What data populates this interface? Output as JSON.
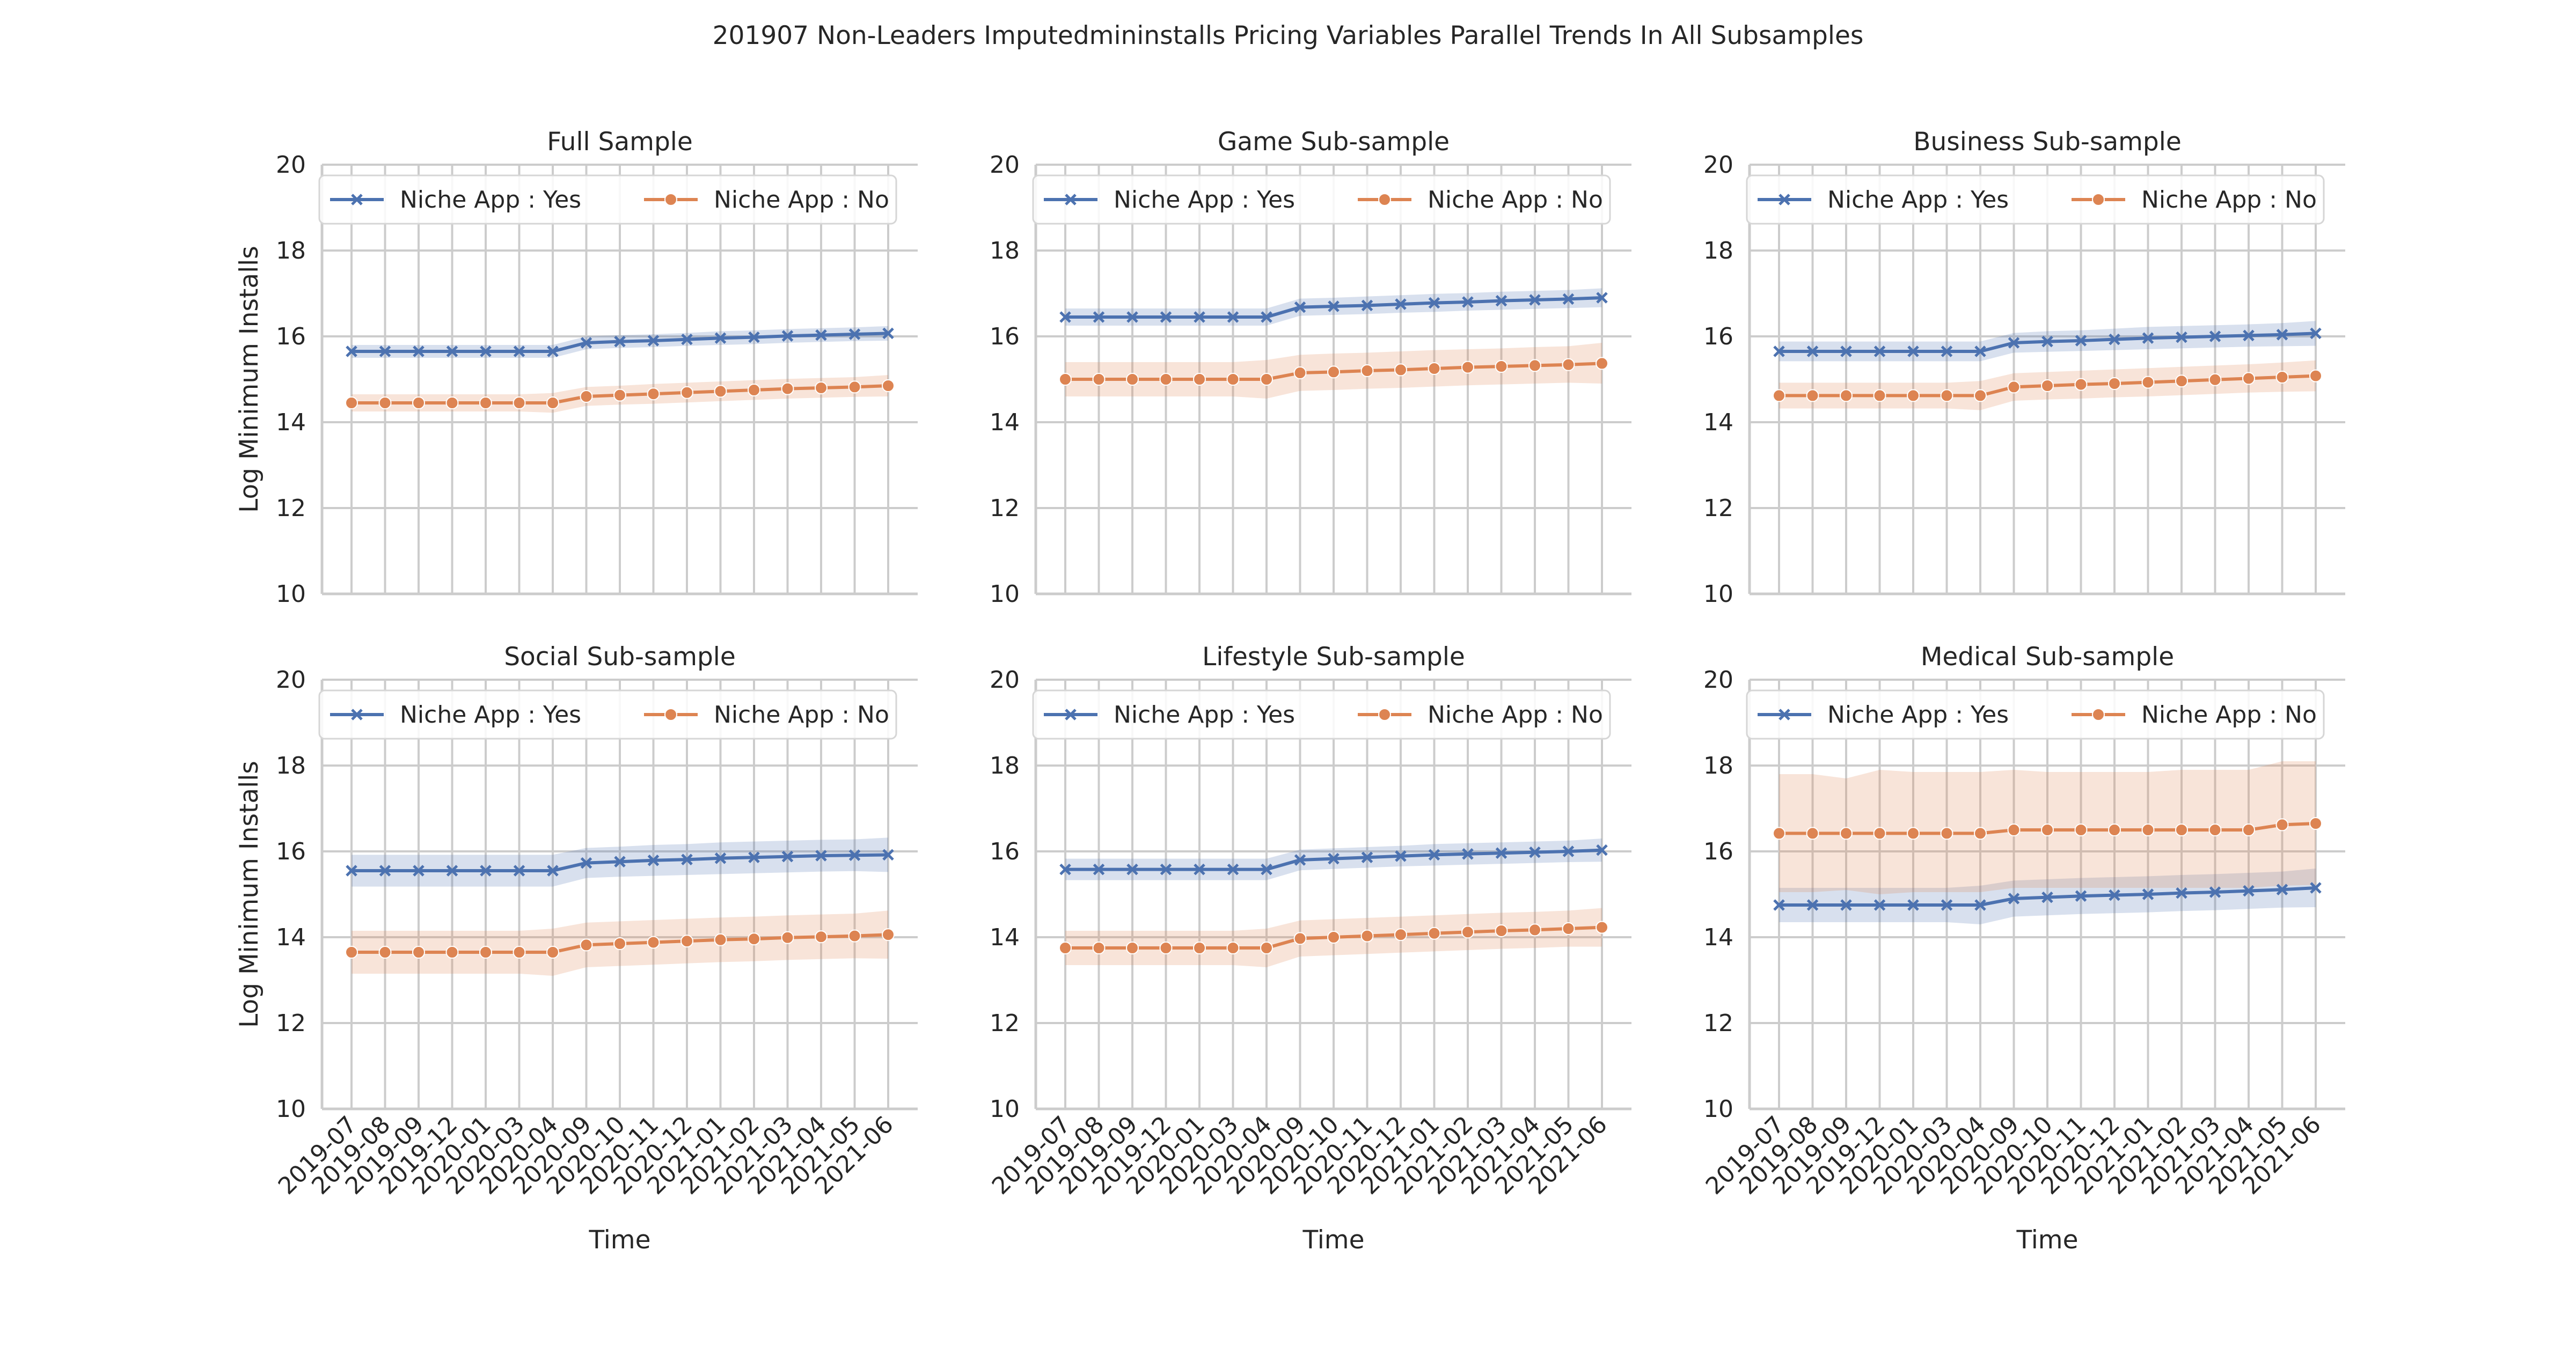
{
  "suptitle": "201907 Non-Leaders Imputedmininstalls Pricing Variables Parallel Trends In All Subsamples",
  "colors": {
    "yes": "#4c72b0",
    "no": "#dd8452",
    "grid": "#cccccc",
    "text": "#262626"
  },
  "chart_data": [
    {
      "type": "line",
      "title": "Full Sample",
      "xlabel": "Time",
      "ylabel": "Log Minimum Installs",
      "ylim": [
        10,
        20
      ],
      "yticks": [
        10,
        12,
        14,
        16,
        18,
        20
      ],
      "categories": [
        "2019-07",
        "2019-08",
        "2019-09",
        "2019-12",
        "2020-01",
        "2020-03",
        "2020-04",
        "2020-09",
        "2020-10",
        "2020-11",
        "2020-12",
        "2021-01",
        "2021-02",
        "2021-03",
        "2021-04",
        "2021-05",
        "2021-06"
      ],
      "grid": true,
      "legend_position": "upper-left",
      "series": [
        {
          "name": "Niche App : Yes",
          "marker": "x",
          "values": [
            15.65,
            15.65,
            15.65,
            15.65,
            15.65,
            15.65,
            15.65,
            15.85,
            15.88,
            15.9,
            15.93,
            15.96,
            15.98,
            16.01,
            16.03,
            16.05,
            16.07
          ],
          "ci_low": [
            15.5,
            15.5,
            15.5,
            15.5,
            15.5,
            15.5,
            15.5,
            15.7,
            15.73,
            15.75,
            15.78,
            15.8,
            15.82,
            15.85,
            15.87,
            15.89,
            15.9
          ],
          "ci_high": [
            15.8,
            15.8,
            15.8,
            15.8,
            15.8,
            15.8,
            15.8,
            16.0,
            16.03,
            16.05,
            16.08,
            16.12,
            16.14,
            16.17,
            16.19,
            16.21,
            16.24
          ]
        },
        {
          "name": "Niche App : No",
          "marker": "o",
          "values": [
            14.45,
            14.45,
            14.45,
            14.45,
            14.45,
            14.45,
            14.45,
            14.6,
            14.63,
            14.66,
            14.69,
            14.72,
            14.75,
            14.78,
            14.8,
            14.82,
            14.85
          ],
          "ci_low": [
            14.25,
            14.25,
            14.25,
            14.25,
            14.25,
            14.25,
            14.22,
            14.38,
            14.41,
            14.43,
            14.46,
            14.49,
            14.52,
            14.55,
            14.57,
            14.59,
            14.6
          ],
          "ci_high": [
            14.65,
            14.65,
            14.65,
            14.65,
            14.65,
            14.65,
            14.68,
            14.82,
            14.85,
            14.89,
            14.92,
            14.95,
            14.98,
            15.01,
            15.03,
            15.05,
            15.1
          ]
        }
      ]
    },
    {
      "type": "line",
      "title": "Game Sub-sample",
      "xlabel": "Time",
      "ylabel": "",
      "ylim": [
        10,
        20
      ],
      "yticks": [
        10,
        12,
        14,
        16,
        18,
        20
      ],
      "categories": [
        "2019-07",
        "2019-08",
        "2019-09",
        "2019-12",
        "2020-01",
        "2020-03",
        "2020-04",
        "2020-09",
        "2020-10",
        "2020-11",
        "2020-12",
        "2021-01",
        "2021-02",
        "2021-03",
        "2021-04",
        "2021-05",
        "2021-06"
      ],
      "grid": true,
      "legend_position": "upper-left",
      "series": [
        {
          "name": "Niche App : Yes",
          "marker": "x",
          "values": [
            16.45,
            16.45,
            16.45,
            16.45,
            16.45,
            16.45,
            16.45,
            16.68,
            16.7,
            16.72,
            16.75,
            16.78,
            16.8,
            16.83,
            16.85,
            16.87,
            16.9
          ],
          "ci_low": [
            16.25,
            16.25,
            16.25,
            16.25,
            16.25,
            16.25,
            16.25,
            16.48,
            16.5,
            16.52,
            16.55,
            16.57,
            16.6,
            16.62,
            16.64,
            16.66,
            16.68
          ],
          "ci_high": [
            16.65,
            16.65,
            16.65,
            16.65,
            16.65,
            16.65,
            16.65,
            16.88,
            16.9,
            16.93,
            16.96,
            16.99,
            17.01,
            17.04,
            17.06,
            17.08,
            17.12
          ]
        },
        {
          "name": "Niche App : No",
          "marker": "o",
          "values": [
            15.0,
            15.0,
            15.0,
            15.0,
            15.0,
            15.0,
            15.0,
            15.15,
            15.17,
            15.2,
            15.22,
            15.25,
            15.28,
            15.3,
            15.32,
            15.34,
            15.37
          ],
          "ci_low": [
            14.6,
            14.6,
            14.6,
            14.6,
            14.6,
            14.6,
            14.55,
            14.73,
            14.75,
            14.78,
            14.8,
            14.83,
            14.86,
            14.88,
            14.9,
            14.92,
            14.9
          ],
          "ci_high": [
            15.4,
            15.4,
            15.4,
            15.4,
            15.4,
            15.4,
            15.45,
            15.57,
            15.6,
            15.62,
            15.65,
            15.68,
            15.7,
            15.72,
            15.75,
            15.77,
            15.85
          ]
        }
      ]
    },
    {
      "type": "line",
      "title": "Business Sub-sample",
      "xlabel": "Time",
      "ylabel": "",
      "ylim": [
        10,
        20
      ],
      "yticks": [
        10,
        12,
        14,
        16,
        18,
        20
      ],
      "categories": [
        "2019-07",
        "2019-08",
        "2019-09",
        "2019-12",
        "2020-01",
        "2020-03",
        "2020-04",
        "2020-09",
        "2020-10",
        "2020-11",
        "2020-12",
        "2021-01",
        "2021-02",
        "2021-03",
        "2021-04",
        "2021-05",
        "2021-06"
      ],
      "grid": true,
      "legend_position": "upper-left",
      "series": [
        {
          "name": "Niche App : Yes",
          "marker": "x",
          "values": [
            15.65,
            15.65,
            15.65,
            15.65,
            15.65,
            15.65,
            15.65,
            15.85,
            15.88,
            15.9,
            15.93,
            15.96,
            15.98,
            16.0,
            16.02,
            16.04,
            16.07
          ],
          "ci_low": [
            15.42,
            15.42,
            15.42,
            15.42,
            15.42,
            15.42,
            15.42,
            15.62,
            15.64,
            15.66,
            15.68,
            15.7,
            15.72,
            15.74,
            15.76,
            15.77,
            15.78
          ],
          "ci_high": [
            15.88,
            15.88,
            15.88,
            15.88,
            15.88,
            15.88,
            15.88,
            16.08,
            16.12,
            16.14,
            16.18,
            16.22,
            16.24,
            16.26,
            16.28,
            16.31,
            16.36
          ]
        },
        {
          "name": "Niche App : No",
          "marker": "o",
          "values": [
            14.62,
            14.62,
            14.62,
            14.62,
            14.62,
            14.62,
            14.62,
            14.82,
            14.85,
            14.88,
            14.9,
            14.93,
            14.96,
            14.99,
            15.02,
            15.05,
            15.08
          ],
          "ci_low": [
            14.32,
            14.32,
            14.32,
            14.32,
            14.32,
            14.32,
            14.28,
            14.5,
            14.53,
            14.55,
            14.58,
            14.6,
            14.63,
            14.66,
            14.69,
            14.71,
            14.72
          ],
          "ci_high": [
            14.92,
            14.92,
            14.92,
            14.92,
            14.92,
            14.92,
            14.96,
            15.14,
            15.17,
            15.2,
            15.23,
            15.26,
            15.29,
            15.32,
            15.35,
            15.39,
            15.44
          ]
        }
      ]
    },
    {
      "type": "line",
      "title": "Social Sub-sample",
      "xlabel": "Time",
      "ylabel": "Log Minimum Installs",
      "ylim": [
        10,
        20
      ],
      "yticks": [
        10,
        12,
        14,
        16,
        18,
        20
      ],
      "categories": [
        "2019-07",
        "2019-08",
        "2019-09",
        "2019-12",
        "2020-01",
        "2020-03",
        "2020-04",
        "2020-09",
        "2020-10",
        "2020-11",
        "2020-12",
        "2021-01",
        "2021-02",
        "2021-03",
        "2021-04",
        "2021-05",
        "2021-06"
      ],
      "grid": true,
      "legend_position": "upper-left",
      "series": [
        {
          "name": "Niche App : Yes",
          "marker": "x",
          "values": [
            15.55,
            15.55,
            15.55,
            15.55,
            15.55,
            15.55,
            15.55,
            15.73,
            15.76,
            15.79,
            15.81,
            15.84,
            15.86,
            15.88,
            15.9,
            15.91,
            15.92
          ],
          "ci_low": [
            15.18,
            15.18,
            15.18,
            15.18,
            15.18,
            15.18,
            15.18,
            15.38,
            15.41,
            15.43,
            15.45,
            15.47,
            15.49,
            15.51,
            15.53,
            15.54,
            15.52
          ],
          "ci_high": [
            15.92,
            15.92,
            15.92,
            15.92,
            15.92,
            15.92,
            15.92,
            16.08,
            16.11,
            16.15,
            16.17,
            16.21,
            16.23,
            16.25,
            16.27,
            16.28,
            16.32
          ]
        },
        {
          "name": "Niche App : No",
          "marker": "o",
          "values": [
            13.65,
            13.65,
            13.65,
            13.65,
            13.65,
            13.65,
            13.65,
            13.82,
            13.85,
            13.88,
            13.91,
            13.94,
            13.96,
            13.99,
            14.01,
            14.03,
            14.06
          ],
          "ci_low": [
            13.15,
            13.15,
            13.15,
            13.15,
            13.15,
            13.15,
            13.1,
            13.3,
            13.33,
            13.36,
            13.39,
            13.42,
            13.44,
            13.47,
            13.49,
            13.51,
            13.5
          ],
          "ci_high": [
            14.15,
            14.15,
            14.15,
            14.15,
            14.15,
            14.15,
            14.2,
            14.34,
            14.37,
            14.4,
            14.43,
            14.46,
            14.48,
            14.51,
            14.53,
            14.55,
            14.62
          ]
        }
      ]
    },
    {
      "type": "line",
      "title": "Lifestyle Sub-sample",
      "xlabel": "Time",
      "ylabel": "",
      "ylim": [
        10,
        20
      ],
      "yticks": [
        10,
        12,
        14,
        16,
        18,
        20
      ],
      "categories": [
        "2019-07",
        "2019-08",
        "2019-09",
        "2019-12",
        "2020-01",
        "2020-03",
        "2020-04",
        "2020-09",
        "2020-10",
        "2020-11",
        "2020-12",
        "2021-01",
        "2021-02",
        "2021-03",
        "2021-04",
        "2021-05",
        "2021-06"
      ],
      "grid": true,
      "legend_position": "upper-left",
      "series": [
        {
          "name": "Niche App : Yes",
          "marker": "x",
          "values": [
            15.58,
            15.58,
            15.58,
            15.58,
            15.58,
            15.58,
            15.58,
            15.8,
            15.83,
            15.86,
            15.89,
            15.92,
            15.94,
            15.96,
            15.98,
            16.0,
            16.03
          ],
          "ci_low": [
            15.33,
            15.33,
            15.33,
            15.33,
            15.33,
            15.33,
            15.33,
            15.56,
            15.59,
            15.62,
            15.65,
            15.67,
            15.69,
            15.71,
            15.73,
            15.75,
            15.76
          ],
          "ci_high": [
            15.83,
            15.83,
            15.83,
            15.83,
            15.83,
            15.83,
            15.83,
            16.04,
            16.07,
            16.1,
            16.13,
            16.17,
            16.19,
            16.21,
            16.23,
            16.25,
            16.3
          ]
        },
        {
          "name": "Niche App : No",
          "marker": "o",
          "values": [
            13.75,
            13.75,
            13.75,
            13.75,
            13.75,
            13.75,
            13.75,
            13.97,
            14.0,
            14.03,
            14.06,
            14.09,
            14.12,
            14.15,
            14.17,
            14.2,
            14.23
          ],
          "ci_low": [
            13.35,
            13.35,
            13.35,
            13.35,
            13.35,
            13.35,
            13.3,
            13.55,
            13.58,
            13.61,
            13.64,
            13.67,
            13.7,
            13.73,
            13.75,
            13.78,
            13.78
          ],
          "ci_high": [
            14.15,
            14.15,
            14.15,
            14.15,
            14.15,
            14.15,
            14.2,
            14.39,
            14.42,
            14.45,
            14.48,
            14.51,
            14.54,
            14.57,
            14.59,
            14.62,
            14.68
          ]
        }
      ]
    },
    {
      "type": "line",
      "title": "Medical Sub-sample",
      "xlabel": "Time",
      "ylabel": "",
      "ylim": [
        10,
        20
      ],
      "yticks": [
        10,
        12,
        14,
        16,
        18,
        20
      ],
      "categories": [
        "2019-07",
        "2019-08",
        "2019-09",
        "2019-12",
        "2020-01",
        "2020-03",
        "2020-04",
        "2020-09",
        "2020-10",
        "2020-11",
        "2020-12",
        "2021-01",
        "2021-02",
        "2021-03",
        "2021-04",
        "2021-05",
        "2021-06"
      ],
      "grid": true,
      "legend_position": "upper-left",
      "series": [
        {
          "name": "Niche App : Yes",
          "marker": "x",
          "values": [
            14.75,
            14.75,
            14.75,
            14.75,
            14.75,
            14.75,
            14.75,
            14.9,
            14.93,
            14.96,
            14.98,
            15.0,
            15.03,
            15.05,
            15.08,
            15.11,
            15.15
          ],
          "ci_low": [
            14.35,
            14.35,
            14.35,
            14.35,
            14.35,
            14.35,
            14.3,
            14.48,
            14.51,
            14.54,
            14.56,
            14.58,
            14.61,
            14.63,
            14.66,
            14.69,
            14.7
          ],
          "ci_high": [
            15.15,
            15.15,
            15.15,
            15.15,
            15.15,
            15.15,
            15.2,
            15.32,
            15.35,
            15.38,
            15.4,
            15.42,
            15.45,
            15.47,
            15.5,
            15.53,
            15.6
          ]
        },
        {
          "name": "Niche App : No",
          "marker": "o",
          "values": [
            16.42,
            16.42,
            16.42,
            16.42,
            16.42,
            16.42,
            16.42,
            16.5,
            16.5,
            16.5,
            16.5,
            16.5,
            16.5,
            16.5,
            16.5,
            16.62,
            16.65
          ],
          "ci_low": [
            15.05,
            15.05,
            15.1,
            15.0,
            15.05,
            15.05,
            15.05,
            15.15,
            15.15,
            15.15,
            15.15,
            15.15,
            15.15,
            15.15,
            15.15,
            15.2,
            15.22
          ],
          "ci_high": [
            17.8,
            17.8,
            17.7,
            17.9,
            17.85,
            17.85,
            17.85,
            17.9,
            17.85,
            17.85,
            17.85,
            17.85,
            17.9,
            17.9,
            17.9,
            18.1,
            18.1
          ]
        }
      ]
    }
  ]
}
